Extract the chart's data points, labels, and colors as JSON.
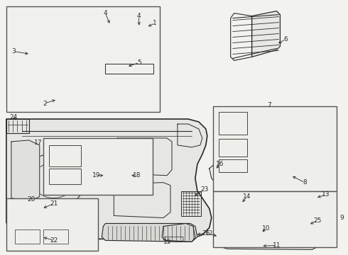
{
  "bg_color": "#f2f2ee",
  "line_color": "#2a2a2a",
  "border_color": "#555555",
  "fig_width": 4.9,
  "fig_height": 3.6,
  "dpi": 100
}
